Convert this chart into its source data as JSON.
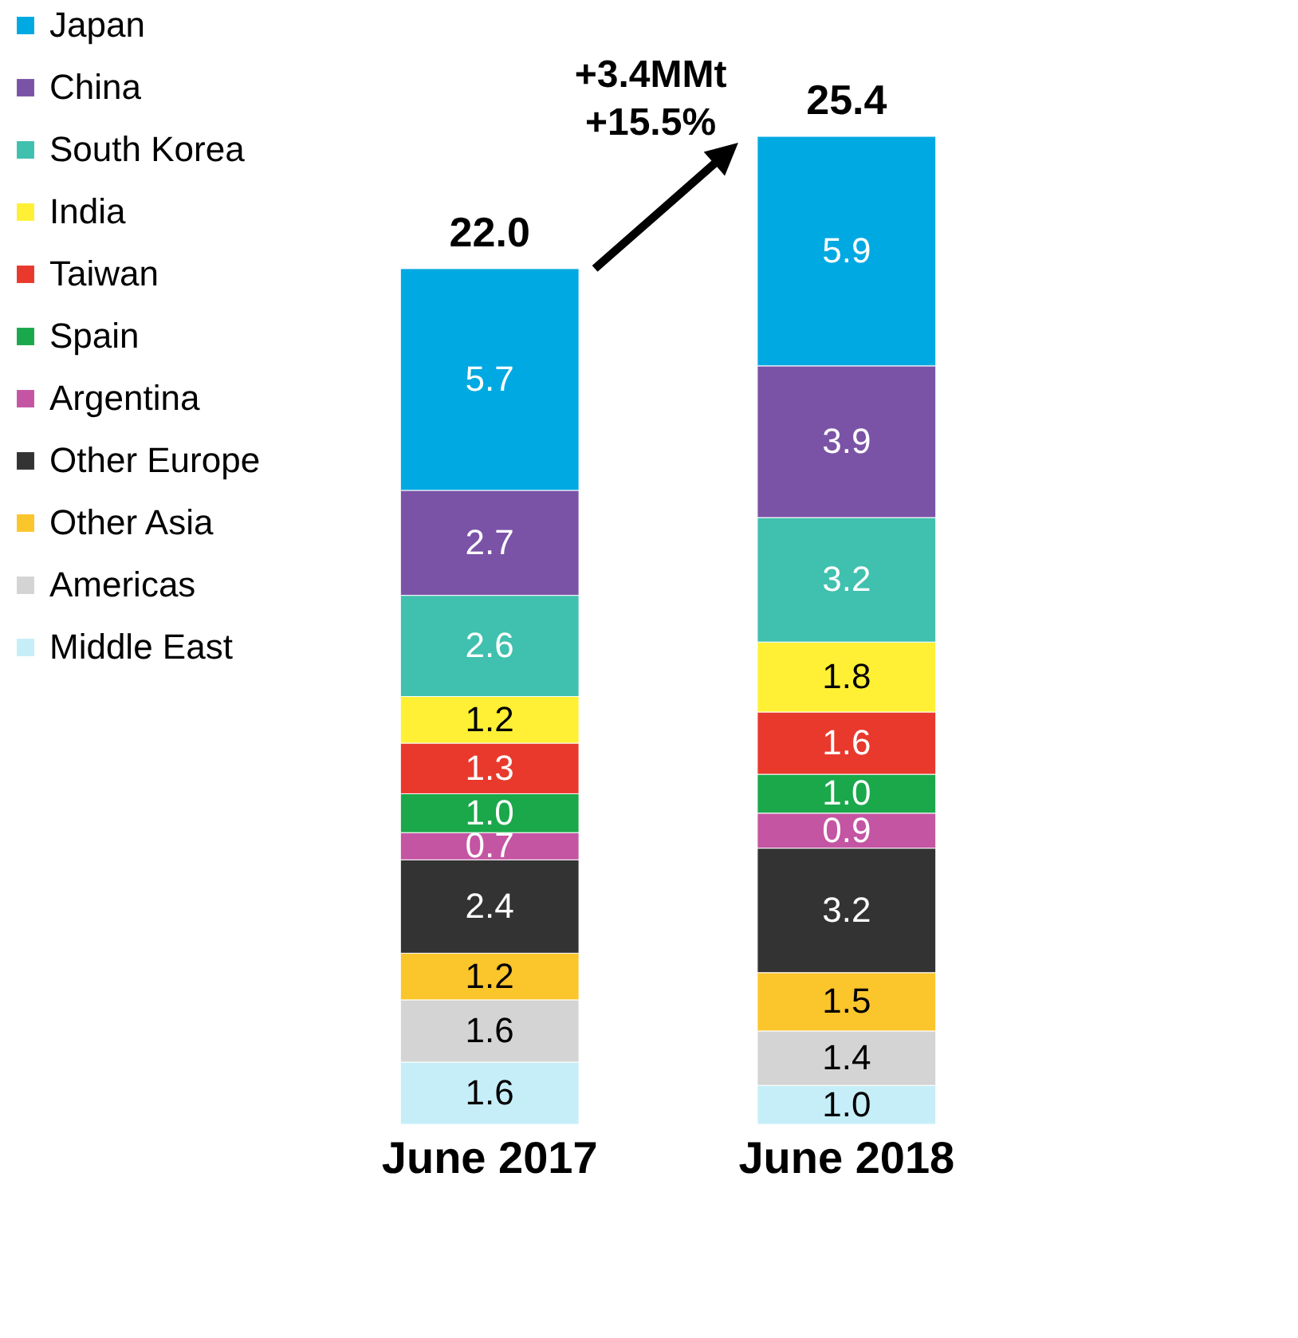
{
  "chart_data": {
    "type": "bar",
    "stacked": true,
    "data_labels": true,
    "legend": "left",
    "categories": [
      "June 2017",
      "June 2018"
    ],
    "series": [
      {
        "name": "Middle East",
        "color": "#c6eef8",
        "values": [
          1.6,
          1.0
        ],
        "value_labels": [
          "1.6",
          "1.0"
        ]
      },
      {
        "name": "Americas",
        "color": "#d4d4d4",
        "values": [
          1.6,
          1.4
        ]
      },
      {
        "name": "Other Asia",
        "color": "#fbc52c",
        "values": [
          1.2,
          1.5
        ]
      },
      {
        "name": "Other Europe",
        "color": "#333333",
        "values": [
          2.4,
          3.2
        ]
      },
      {
        "name": "Argentina",
        "color": "#c455a3",
        "values": [
          0.7,
          0.9
        ]
      },
      {
        "name": "Spain",
        "color": "#1aa84b",
        "values": [
          1.0,
          1.0
        ],
        "value_labels": [
          "1.0",
          "1.0"
        ]
      },
      {
        "name": "Taiwan",
        "color": "#e8392c",
        "values": [
          1.3,
          1.6
        ]
      },
      {
        "name": "India",
        "color": "#fff035",
        "values": [
          1.2,
          1.8
        ]
      },
      {
        "name": "South Korea",
        "color": "#40c0ae",
        "values": [
          2.6,
          3.2
        ]
      },
      {
        "name": "China",
        "color": "#7a53a7",
        "values": [
          2.7,
          3.9
        ]
      },
      {
        "name": "Japan",
        "color": "#00a9e2",
        "values": [
          5.7,
          5.9
        ]
      }
    ],
    "totals": [
      "22.0",
      "25.4"
    ],
    "annotations": [
      "+3.4MMt\n+15.5%"
    ]
  }
}
